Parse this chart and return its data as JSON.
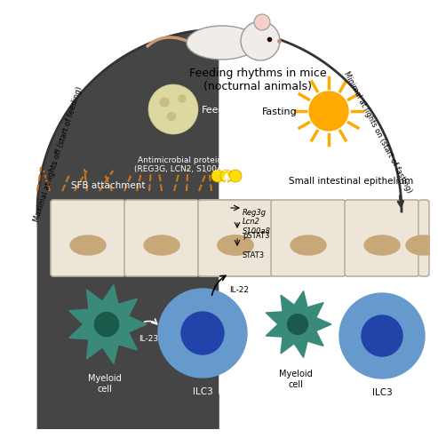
{
  "title": "Feeding rhythms in mice\n(nocturnal animals)",
  "left_arc_text": "Maximal at lights off (start of feeding)",
  "right_arc_text": "Minimal at lights on (start of fasting)",
  "feeding_text": "Feeding",
  "fasting_text": "Fasting",
  "antimicrobial_text": "Antimicrobial proteins\n(REG3G, LCN2, S100A8)",
  "sfb_text": "SFB attachment",
  "small_intestine_text": "Small intestinal epithelium",
  "reg3g_text": "Reg3g\nLcn2\nS100a8",
  "pstat3_text": "pSTAT3",
  "stat3_text": "STAT3",
  "il22_text": "IL-22",
  "il23_text": "IL-23",
  "myeloid_left": "Myeloid\ncell",
  "myeloid_right": "Myeloid\ncell",
  "ilc3_left": "ILC3",
  "ilc3_right": "ILC3",
  "bg_dark": "#454545",
  "bg_light": "#ffffff",
  "cell_fill": "#ece5d8",
  "cell_nucleus": "#c8a878",
  "cell_border": "#b8afa0",
  "myeloid_outer": "#3a8a7a",
  "myeloid_inner": "#1a5a4a",
  "ilc3_outer": "#6699cc",
  "ilc3_inner": "#2244aa",
  "sfb_color": "#cc7722",
  "protein_color": "#ffdd00",
  "moon_color": "#ddd8a0",
  "sun_color": "#ffaa00",
  "arc_color": "#333333"
}
